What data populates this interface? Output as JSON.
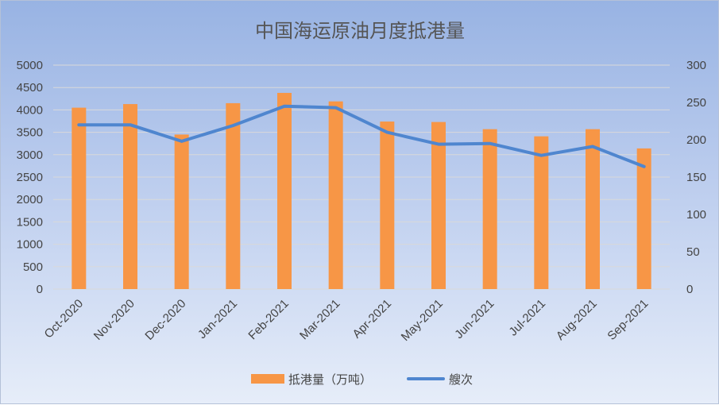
{
  "chart_data": {
    "type": "bar+line",
    "title": "中国海运原油月度抵港量",
    "categories": [
      "Oct-2020",
      "Nov-2020",
      "Dec-2020",
      "Jan-2021",
      "Feb-2021",
      "Mar-2021",
      "Apr-2021",
      "May-2021",
      "Jun-2021",
      "Jul-2021",
      "Aug-2021",
      "Sep-2021"
    ],
    "series": [
      {
        "name": "抵港量（万吨）",
        "type": "bar",
        "axis": "left",
        "values": [
          4050,
          4130,
          3450,
          4150,
          4380,
          4190,
          3740,
          3730,
          3570,
          3410,
          3570,
          3140
        ],
        "color": "#f79646"
      },
      {
        "name": "艘次",
        "type": "line",
        "axis": "right",
        "values": [
          220,
          220,
          198,
          219,
          245,
          243,
          210,
          194,
          195,
          179,
          191,
          164
        ],
        "color": "#4f86cf"
      }
    ],
    "y_left": {
      "min": 0,
      "max": 5000,
      "ticks": [
        0,
        500,
        1000,
        1500,
        2000,
        2500,
        3000,
        3500,
        4000,
        4500,
        5000
      ]
    },
    "y_right": {
      "min": 0,
      "max": 300,
      "ticks": [
        0,
        50,
        100,
        150,
        200,
        250,
        300
      ]
    },
    "grid": true,
    "legend_position": "bottom"
  }
}
